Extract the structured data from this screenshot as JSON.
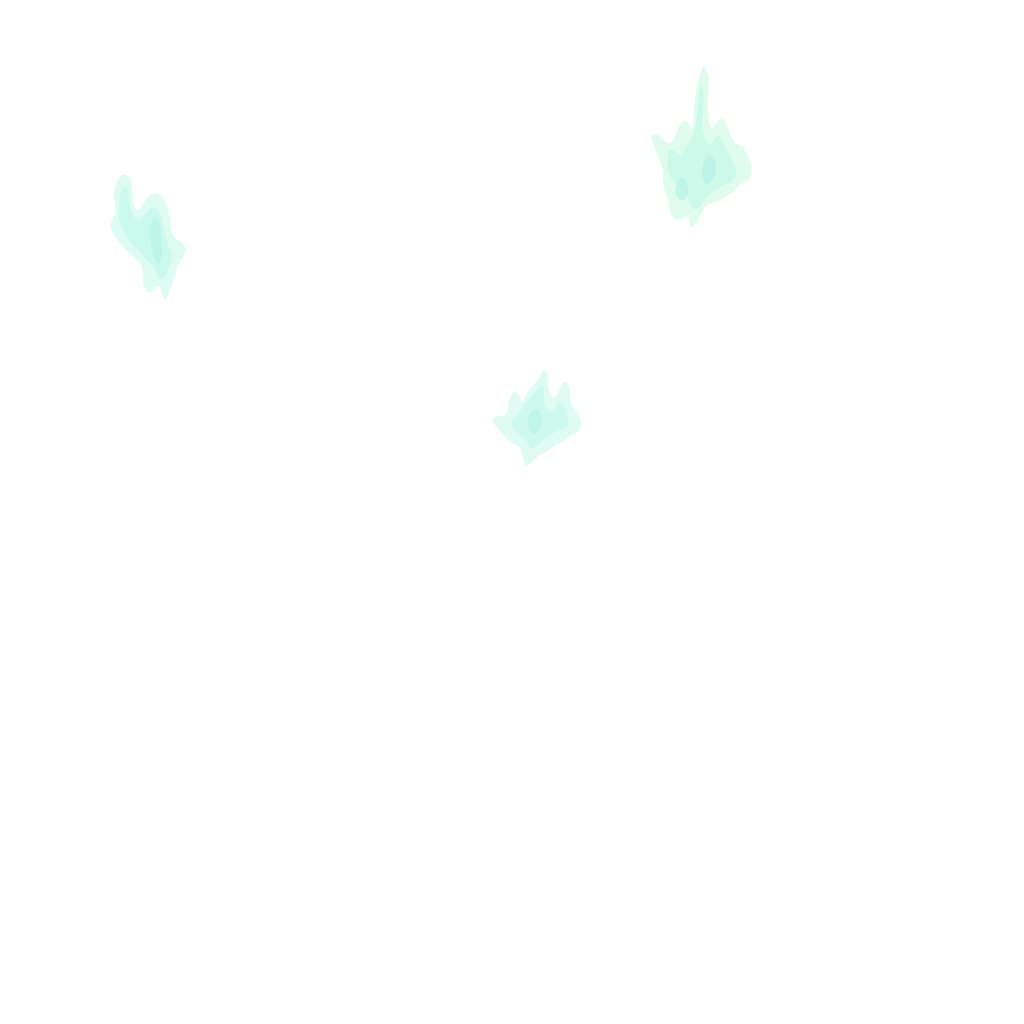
{
  "canvas": {
    "background": "#ffffff"
  },
  "splotches": [
    {
      "name": "mint-splotch-left",
      "color_light": "#d8fbf0",
      "color_mid": "#c6f7ec",
      "color_dark": "#b7f3e9"
    },
    {
      "name": "mint-splotch-top-right",
      "color_light": "#d9fbec",
      "color_mid": "#c8f7ea",
      "color_dark": "#b8f2e6"
    },
    {
      "name": "mint-splotch-center",
      "color_light": "#dafbf0",
      "color_mid": "#c9f8ee",
      "color_dark": "#b9f4ea"
    }
  ]
}
